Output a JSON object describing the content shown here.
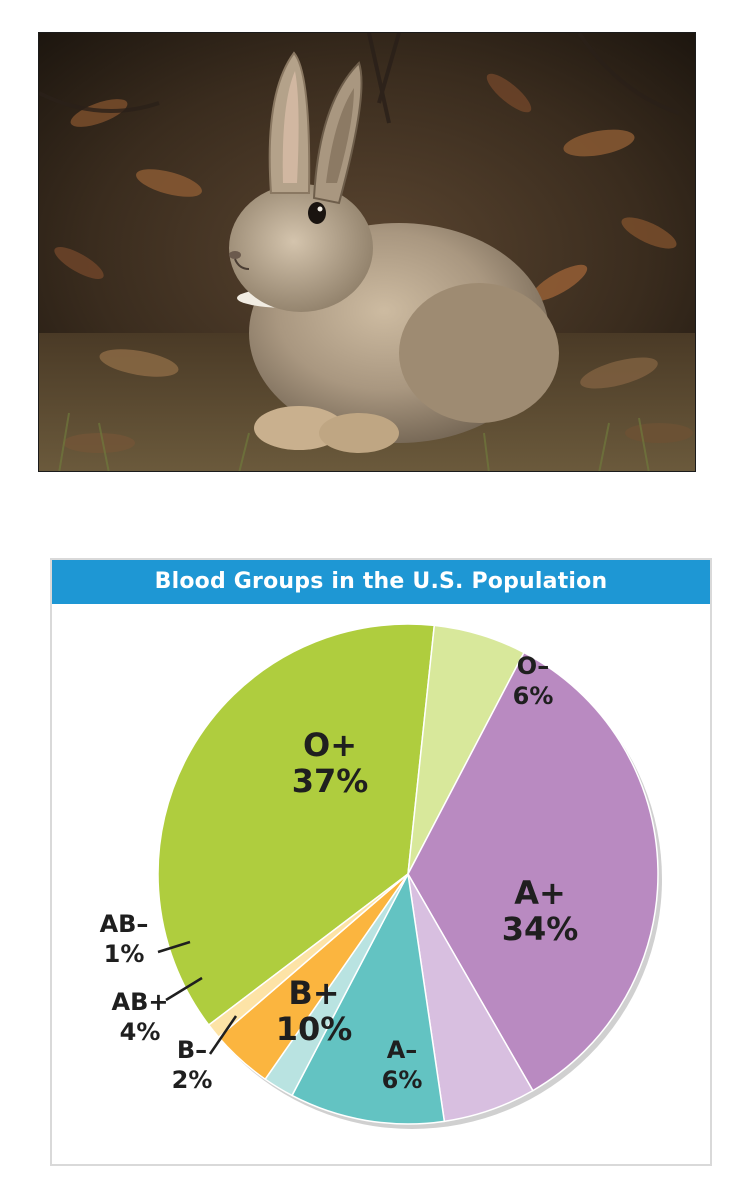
{
  "photo": {
    "subject": "rabbit"
  },
  "chart_data": {
    "type": "pie",
    "title": "Blood Groups in the U.S. Population",
    "slices": [
      {
        "name": "O+",
        "value": 37,
        "percent_label": "37%",
        "color": "#afcd3e"
      },
      {
        "name": "O–",
        "value": 6,
        "percent_label": "6%",
        "color": "#d8e89b"
      },
      {
        "name": "A+",
        "value": 34,
        "percent_label": "34%",
        "color": "#b98ac1"
      },
      {
        "name": "A–",
        "value": 6,
        "percent_label": "6%",
        "color": "#d8bfe0"
      },
      {
        "name": "B+",
        "value": 10,
        "percent_label": "10%",
        "color": "#63c3c2"
      },
      {
        "name": "B–",
        "value": 2,
        "percent_label": "2%",
        "color": "#b9e3e1"
      },
      {
        "name": "AB+",
        "value": 4,
        "percent_label": "4%",
        "color": "#fbb53f"
      },
      {
        "name": "AB–",
        "value": 1,
        "percent_label": "1%",
        "color": "#fde3a6"
      }
    ]
  }
}
